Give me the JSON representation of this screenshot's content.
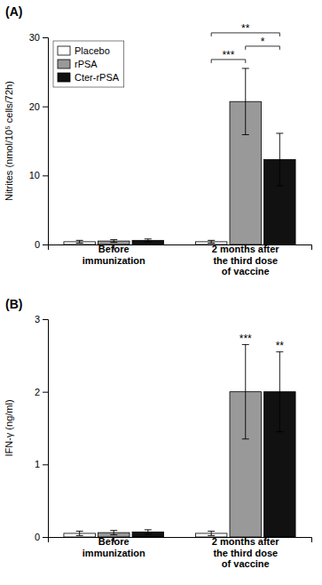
{
  "chart_data": [
    {
      "type": "bar",
      "title": "(A)",
      "ylabel": "Nitrites (nmol/10⁵ cells/72h)",
      "categories": [
        "Before\nimmunization",
        "2 months after\nthe third dose\nof vaccine"
      ],
      "series": [
        {
          "name": "Placebo",
          "color": "#ffffff",
          "values": [
            0.4,
            0.4
          ],
          "errors": [
            0.2,
            0.2
          ]
        },
        {
          "name": "rPSA",
          "color": "#999999",
          "values": [
            0.5,
            20.7
          ],
          "errors": [
            0.2,
            4.8
          ]
        },
        {
          "name": "Cter-rPSA",
          "color": "#111111",
          "values": [
            0.6,
            12.3
          ],
          "errors": [
            0.2,
            3.8
          ]
        }
      ],
      "ylim": [
        0,
        30
      ],
      "yticks": [
        0,
        10,
        20,
        30
      ],
      "grid": false,
      "legend": "upper left",
      "annotations": [
        {
          "text": "***",
          "category": "2 months after\nthe third dose\nof vaccine",
          "series": [
            "Placebo",
            "rPSA"
          ]
        },
        {
          "text": "*",
          "category": "2 months after\nthe third dose\nof vaccine",
          "series": [
            "rPSA",
            "Cter-rPSA"
          ]
        },
        {
          "text": "**",
          "category": "2 months after\nthe third dose\nof vaccine",
          "series": [
            "Placebo",
            "Cter-rPSA"
          ]
        }
      ]
    },
    {
      "type": "bar",
      "title": "(B)",
      "ylabel": "IFN-γ (ng/ml)",
      "categories": [
        "Before\nimmunization",
        "2 months after\nthe third dose\nof vaccine"
      ],
      "series": [
        {
          "name": "Placebo",
          "color": "#ffffff",
          "values": [
            0.05,
            0.05
          ],
          "errors": [
            0.03,
            0.03
          ]
        },
        {
          "name": "rPSA",
          "color": "#999999",
          "values": [
            0.06,
            2.0
          ],
          "errors": [
            0.03,
            0.65
          ]
        },
        {
          "name": "Cter-rPSA",
          "color": "#111111",
          "values": [
            0.07,
            2.0
          ],
          "errors": [
            0.03,
            0.55
          ]
        }
      ],
      "ylim": [
        0,
        3
      ],
      "yticks": [
        0,
        1,
        2,
        3
      ],
      "grid": false,
      "annotations": [
        {
          "text": "***",
          "category": "2 months after\nthe third dose\nof vaccine",
          "series": [
            "rPSA"
          ]
        },
        {
          "text": "**",
          "category": "2 months after\nthe third dose\nof vaccine",
          "series": [
            "Cter-rPSA"
          ]
        }
      ]
    }
  ]
}
